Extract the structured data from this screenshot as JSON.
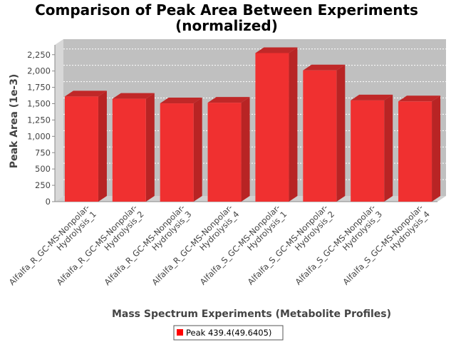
{
  "chart_data": {
    "type": "bar",
    "title_line1": "Comparison of Peak Area Between Experiments",
    "title_line2": "(normalized)",
    "xlabel": "Mass Spectrum Experiments (Metabolite Profiles)",
    "ylabel": "Peak Area (1e-3)",
    "ylim": [
      0,
      2400
    ],
    "yticks": [
      "0",
      "250",
      "500",
      "750",
      "1,000",
      "1,250",
      "1,500",
      "1,750",
      "2,000",
      "2,250"
    ],
    "ytick_values": [
      0,
      250,
      500,
      750,
      1000,
      1250,
      1500,
      1750,
      2000,
      2250
    ],
    "categories": [
      [
        "Alfalfa_R_GC-MS-Nonpolar-",
        "Hydrolysis_1"
      ],
      [
        "Alfalfa_R_GC-MS-Nonpolar-",
        "Hydrolysis_2"
      ],
      [
        "Alfalfa_R_GC-MS-Nonpolar-",
        "Hydrolysis_3"
      ],
      [
        "Alfalfa_R_GC-MS-Nonpolar-",
        "Hydrolysis_4"
      ],
      [
        "Alfalfa_S_GC-MS-Nonpolar-",
        "Hydrolysis_1"
      ],
      [
        "Alfalfa_S_GC-MS-Nonpolar-",
        "Hydrolysis_2"
      ],
      [
        "Alfalfa_S_GC-MS-Nonpolar-",
        "Hydrolysis_3"
      ],
      [
        "Alfalfa_S_GC-MS-Nonpolar-",
        "Hydrolysis_4"
      ]
    ],
    "series": [
      {
        "name": "Peak 439.4(49.6405)",
        "values": [
          1610,
          1575,
          1505,
          1515,
          2275,
          2010,
          1550,
          1535
        ]
      }
    ],
    "colors": {
      "bar_front": "#f03030",
      "bar_top": "#c02828",
      "bar_side": "#b82424",
      "plot_bg": "#c0c0c0",
      "plot_wall_side": "#d8d8d8",
      "plot_floor": "#d0d0d0",
      "grid": "#ffffff",
      "legend_swatch": "#ff0000"
    },
    "grid": true,
    "legend_position": "bottom-center"
  }
}
